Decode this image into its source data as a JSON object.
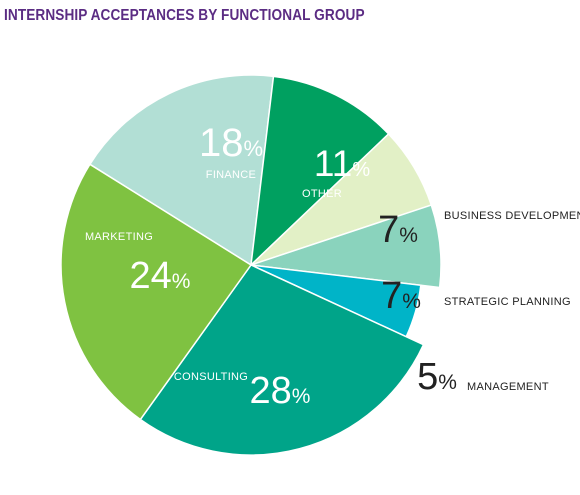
{
  "colors": {
    "title": "#5b2c83",
    "inside_text": "#ffffff",
    "outside_text": "#222222",
    "slice_border": "#ffffff"
  },
  "chart_data": {
    "type": "pie",
    "title": "INTERNSHIP ACCEPTANCES BY FUNCTIONAL GROUP",
    "unit": "%",
    "slices": [
      {
        "label": "FINANCE",
        "value": 18,
        "color": "#b2dfd5"
      },
      {
        "label": "OTHER",
        "value": 11,
        "color": "#00a060"
      },
      {
        "label": "BUSINESS DEVELOPMENT",
        "value": 7,
        "color": "#e2f0c6"
      },
      {
        "label": "STRATEGIC PLANNING",
        "value": 7,
        "color": "#8ad3bd"
      },
      {
        "label": "MANAGEMENT",
        "value": 5,
        "color": "#00b4c8"
      },
      {
        "label": "CONSULTING",
        "value": 28,
        "color": "#00a489"
      },
      {
        "label": "MARKETING",
        "value": 24,
        "color": "#7fc241"
      }
    ]
  }
}
